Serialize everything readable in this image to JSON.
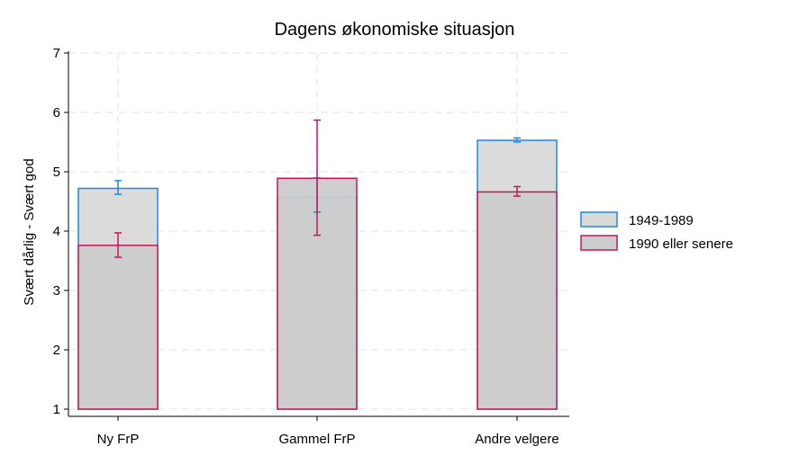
{
  "chart_data": {
    "type": "bar",
    "title": "Dagens økonomiske situasjon",
    "xlabel": "",
    "ylabel": "Svært dårlig - Svært god",
    "ylim": [
      1,
      7
    ],
    "yticks": [
      1,
      2,
      3,
      4,
      5,
      6,
      7
    ],
    "grid": true,
    "legend_position": "right",
    "categories": [
      "Ny FrP",
      "Gammel FrP",
      "Andre velgere"
    ],
    "series": [
      {
        "name": "1949-1989",
        "color": "#1e88e5",
        "fill": "#d9d9d9",
        "values": [
          4.72,
          4.58,
          5.53
        ],
        "ci_low": [
          4.62,
          4.32,
          5.5
        ],
        "ci_high": [
          4.85,
          4.9,
          5.57
        ]
      },
      {
        "name": "1990 eller senere",
        "color": "#c2185b",
        "fill": "#cccccc",
        "values": [
          3.76,
          4.89,
          4.66
        ],
        "ci_low": [
          3.56,
          3.93,
          4.59
        ],
        "ci_high": [
          3.97,
          5.87,
          4.75
        ]
      }
    ]
  }
}
